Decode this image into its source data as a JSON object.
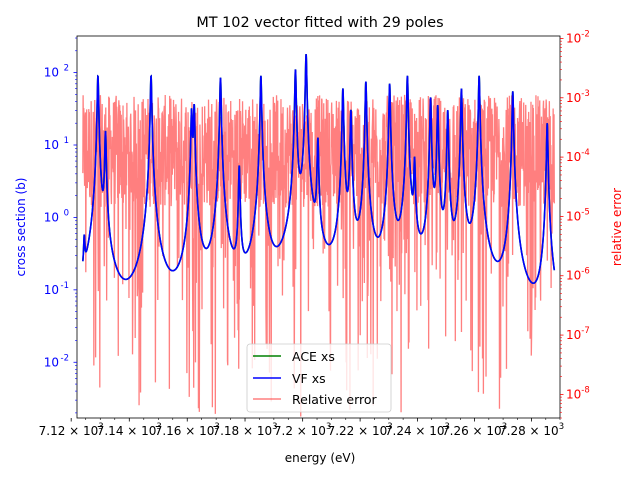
{
  "chart_data": {
    "type": "line",
    "title": "MT 102 vector fitted with 29 poles",
    "xlabel": "energy (eV)",
    "ylabel_left": "cross section (b)",
    "ylabel_right": "relative error",
    "x_scale": "log",
    "y_left_scale": "log",
    "y_right_scale": "log",
    "xlim": [
      7122,
      7290
    ],
    "ylim_left": [
      0.0017,
      320
    ],
    "ylim_right": [
      4e-09,
      0.011
    ],
    "x_ticks": [
      7120,
      7140,
      7160,
      7180,
      7200,
      7220,
      7240,
      7260,
      7280
    ],
    "x_tick_mantissas": [
      "7.12",
      "7.14",
      "7.16",
      "7.18",
      "7.2",
      "7.22",
      "7.24",
      "7.26",
      "7.28"
    ],
    "x_tick_base": "10",
    "x_tick_exponent": "3",
    "y_left_ticks": [
      0.01,
      0.1,
      1,
      10,
      100
    ],
    "y_left_tick_exponents": [
      "-2",
      "-1",
      "0",
      "1",
      "2"
    ],
    "y_right_ticks": [
      1e-08,
      1e-07,
      1e-06,
      1e-05,
      0.0001,
      0.001,
      0.01
    ],
    "y_right_tick_exponents": [
      "-8",
      "-7",
      "-6",
      "-5",
      "-4",
      "-3",
      "-2"
    ],
    "grid": false,
    "legend_placement": "lower-center",
    "energy_range": [
      7124,
      7288
    ],
    "resonances": [
      {
        "x": 7124.5,
        "peak": 0.35
      },
      {
        "x": 7129.2,
        "peak": 90
      },
      {
        "x": 7131.8,
        "peak": 15
      },
      {
        "x": 7147.5,
        "peak": 90
      },
      {
        "x": 7161.5,
        "peak": 30
      },
      {
        "x": 7162.4,
        "peak": 35
      },
      {
        "x": 7171.5,
        "peak": 85
      },
      {
        "x": 7178.0,
        "peak": 5
      },
      {
        "x": 7185.5,
        "peak": 90
      },
      {
        "x": 7197.5,
        "peak": 110
      },
      {
        "x": 7201.2,
        "peak": 180
      },
      {
        "x": 7205.3,
        "peak": 12
      },
      {
        "x": 7214.0,
        "peak": 60
      },
      {
        "x": 7216.8,
        "peak": 30
      },
      {
        "x": 7222.0,
        "peak": 75
      },
      {
        "x": 7230.3,
        "peak": 70
      },
      {
        "x": 7236.5,
        "peak": 90
      },
      {
        "x": 7239.0,
        "peak": 6
      },
      {
        "x": 7244.6,
        "peak": 45
      },
      {
        "x": 7247.1,
        "peak": 35
      },
      {
        "x": 7250.6,
        "peak": 30
      },
      {
        "x": 7255.4,
        "peak": 60
      },
      {
        "x": 7261.6,
        "peak": 90
      },
      {
        "x": 7273.4,
        "peak": 55
      },
      {
        "x": 7285.5,
        "peak": 20
      }
    ],
    "series": [
      {
        "name": "ACE xs",
        "color": "#008000"
      },
      {
        "name": "VF xs",
        "color": "#0000ff"
      },
      {
        "name": "Relative error",
        "color": "#ff0000",
        "alpha": 0.5,
        "typical_range": [
          1e-05,
          0.001
        ]
      }
    ]
  },
  "colors": {
    "left_axis": "#0000ff",
    "right_axis": "#ff0000",
    "frame": "#000000"
  }
}
